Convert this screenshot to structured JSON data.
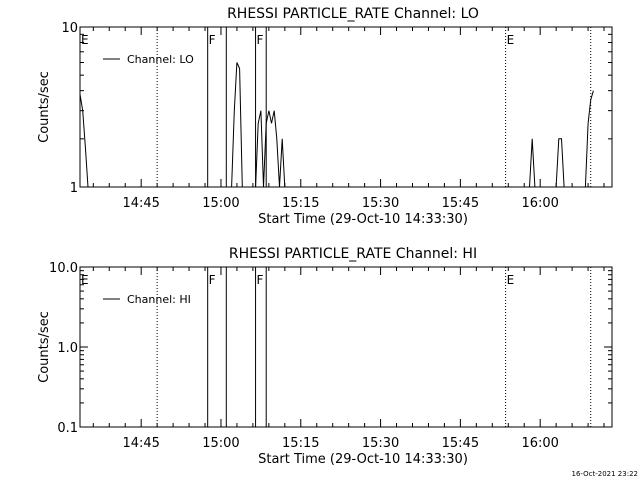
{
  "footer": {
    "timestamp": "16-Oct-2021 23:22"
  },
  "chart_data": [
    {
      "type": "line",
      "title": "RHESSI PARTICLE_RATE Channel: LO",
      "xlabel": "Start Time (29-Oct-10 14:33:30)",
      "ylabel": "Counts/sec",
      "yscale": "log",
      "xlim": [
        "14:33:30",
        "16:13:30"
      ],
      "ylim": [
        1,
        10
      ],
      "x_ticks": [
        "14:45",
        "15:00",
        "15:15",
        "15:30",
        "15:45",
        "16:00"
      ],
      "y_ticks": [
        "1",
        "10"
      ],
      "legend": {
        "entries": [
          "Channel: LO"
        ],
        "position": "top-left"
      },
      "markers": [
        {
          "time": "14:33:30",
          "style": "solid",
          "label": "E"
        },
        {
          "time": "14:48:00",
          "style": "dotted",
          "label": ""
        },
        {
          "time": "14:57:30",
          "style": "solid",
          "label": "F"
        },
        {
          "time": "15:01:00",
          "style": "solid",
          "label": ""
        },
        {
          "time": "15:06:30",
          "style": "solid",
          "label": "F"
        },
        {
          "time": "15:08:30",
          "style": "solid",
          "label": ""
        },
        {
          "time": "15:53:30",
          "style": "dotted",
          "label": "E"
        },
        {
          "time": "16:09:30",
          "style": "dotted",
          "label": ""
        }
      ],
      "series": [
        {
          "name": "Channel: LO",
          "points": [
            [
              "14:33:30",
              3.8
            ],
            [
              "14:34:00",
              3.0
            ],
            [
              "14:34:30",
              1.8
            ],
            [
              "14:35:00",
              1.0
            ],
            [
              "15:02:00",
              1.0
            ],
            [
              "15:02:30",
              3.0
            ],
            [
              "15:03:00",
              6.0
            ],
            [
              "15:03:30",
              5.5
            ],
            [
              "15:04:00",
              1.0
            ],
            [
              "15:06:30",
              1.0
            ],
            [
              "15:07:00",
              2.5
            ],
            [
              "15:07:30",
              3.0
            ],
            [
              "15:08:00",
              1.0
            ],
            [
              "15:08:30",
              2.5
            ],
            [
              "15:09:00",
              3.0
            ],
            [
              "15:09:30",
              2.5
            ],
            [
              "15:10:00",
              3.0
            ],
            [
              "15:10:30",
              2.0
            ],
            [
              "15:11:00",
              1.0
            ],
            [
              "15:11:30",
              2.0
            ],
            [
              "15:12:00",
              1.0
            ],
            [
              "15:58:00",
              1.0
            ],
            [
              "15:58:30",
              2.0
            ],
            [
              "15:59:00",
              1.0
            ],
            [
              "16:03:00",
              1.0
            ],
            [
              "16:03:30",
              2.0
            ],
            [
              "16:04:00",
              2.0
            ],
            [
              "16:04:30",
              1.0
            ],
            [
              "16:08:30",
              1.0
            ],
            [
              "16:09:00",
              2.5
            ],
            [
              "16:09:30",
              3.5
            ],
            [
              "16:10:00",
              4.0
            ]
          ]
        }
      ]
    },
    {
      "type": "line",
      "title": "RHESSI PARTICLE_RATE Channel: HI",
      "xlabel": "Start Time (29-Oct-10 14:33:30)",
      "ylabel": "Counts/sec",
      "yscale": "log",
      "xlim": [
        "14:33:30",
        "16:13:30"
      ],
      "ylim": [
        0.1,
        10
      ],
      "x_ticks": [
        "14:45",
        "15:00",
        "15:15",
        "15:30",
        "15:45",
        "16:00"
      ],
      "y_ticks": [
        "0.1",
        "1.0",
        "10.0"
      ],
      "legend": {
        "entries": [
          "Channel: HI"
        ],
        "position": "top-left"
      },
      "markers": [
        {
          "time": "14:33:30",
          "style": "solid",
          "label": "E"
        },
        {
          "time": "14:48:00",
          "style": "dotted",
          "label": ""
        },
        {
          "time": "14:57:30",
          "style": "solid",
          "label": "F"
        },
        {
          "time": "15:01:00",
          "style": "solid",
          "label": ""
        },
        {
          "time": "15:06:30",
          "style": "solid",
          "label": "F"
        },
        {
          "time": "15:08:30",
          "style": "solid",
          "label": ""
        },
        {
          "time": "15:53:30",
          "style": "dotted",
          "label": "E"
        },
        {
          "time": "16:09:30",
          "style": "dotted",
          "label": ""
        }
      ],
      "series": [
        {
          "name": "Channel: HI",
          "points": []
        }
      ]
    }
  ]
}
